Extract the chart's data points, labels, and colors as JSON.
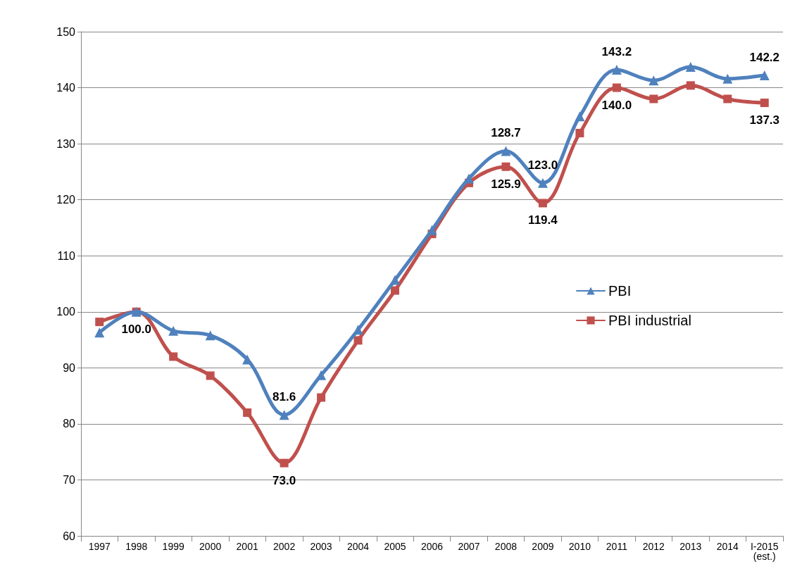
{
  "chart_data": {
    "type": "line",
    "categories": [
      "1997",
      "1998",
      "1999",
      "2000",
      "2001",
      "2002",
      "2003",
      "2004",
      "2005",
      "2006",
      "2007",
      "2008",
      "2009",
      "2010",
      "2011",
      "2012",
      "2013",
      "2014",
      "I-2015\n(est.)"
    ],
    "series": [
      {
        "name": "PBI",
        "color": "#4f81bd",
        "marker": "triangle",
        "values": [
          96.3,
          100.0,
          96.6,
          95.8,
          91.5,
          81.6,
          88.7,
          96.8,
          105.7,
          114.6,
          123.8,
          128.7,
          123.0,
          134.9,
          143.2,
          141.3,
          143.7,
          141.6,
          142.2
        ],
        "value_labels": [
          null,
          null,
          null,
          null,
          null,
          "81.6",
          null,
          null,
          null,
          null,
          null,
          "128.7",
          "123.0",
          null,
          "143.2",
          null,
          null,
          null,
          "142.2"
        ]
      },
      {
        "name": "PBI industrial",
        "color": "#c0504d",
        "marker": "square",
        "values": [
          98.2,
          100.0,
          92.0,
          88.6,
          82.0,
          73.0,
          84.7,
          94.9,
          103.8,
          113.9,
          123.0,
          125.9,
          119.4,
          131.9,
          140.0,
          138.0,
          140.4,
          138.0,
          137.3
        ],
        "value_labels": [
          null,
          "100.0",
          null,
          null,
          null,
          "73.0",
          null,
          null,
          null,
          null,
          null,
          "125.9",
          "119.4",
          null,
          "140.0",
          null,
          null,
          null,
          "137.3"
        ]
      }
    ],
    "ylim": [
      60,
      150
    ],
    "yticks": [
      60,
      70,
      80,
      90,
      100,
      110,
      120,
      130,
      140,
      150
    ],
    "grid": "y",
    "legend": "right",
    "line_style": "solid"
  }
}
